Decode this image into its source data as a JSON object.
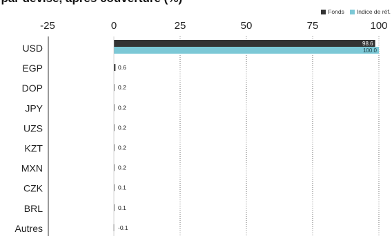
{
  "title": "l par devise, après couverture (%)",
  "legend": [
    {
      "label": "Fonds",
      "color": "#333333"
    },
    {
      "label": "Indice de réf.",
      "color": "#7cc8d6"
    }
  ],
  "chart_data": {
    "type": "bar",
    "orientation": "horizontal",
    "categories": [
      "USD",
      "EGP",
      "DOP",
      "JPY",
      "UZS",
      "KZT",
      "MXN",
      "CZK",
      "BRL",
      "Autres"
    ],
    "xlim": [
      -25,
      100
    ],
    "xticks": [
      "-25",
      "0",
      "25",
      "50",
      "75",
      "100"
    ],
    "grid": "vertical dotted",
    "legend_position": "top-right",
    "series": [
      {
        "name": "Fonds",
        "color": "#333333",
        "values": [
          98.6,
          0.6,
          0.2,
          0.2,
          0.2,
          0.2,
          0.2,
          0.1,
          0.1,
          -0.1
        ],
        "labels": [
          "98.6",
          "0.6",
          "0.2",
          "0.2",
          "0.2",
          "0.2",
          "0.2",
          "0.1",
          "0.1",
          "-0.1"
        ]
      },
      {
        "name": "Indice de réf.",
        "color": "#7cc8d6",
        "values": [
          100.0,
          0,
          0,
          0,
          0,
          0,
          0,
          0,
          0,
          0
        ],
        "labels": [
          "100.0",
          "",
          "",
          "",
          "",
          "",
          "",
          "",
          "",
          ""
        ]
      }
    ]
  }
}
